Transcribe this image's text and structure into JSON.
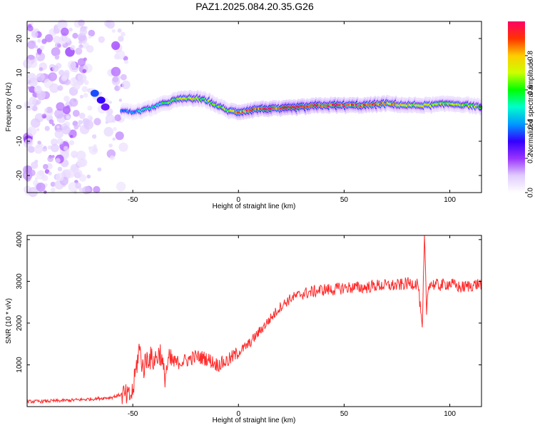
{
  "title": "PAZ1.2025.084.20.35.G26",
  "chart_data": [
    {
      "type": "heatmap",
      "title": "PAZ1.2025.084.20.35.G26",
      "xlabel": "Height of straight line (km)",
      "ylabel": "Frequency (Hz)",
      "xlim": [
        -100,
        115
      ],
      "ylim": [
        -25,
        25
      ],
      "x_ticks": [
        -50,
        0,
        50,
        100
      ],
      "y_ticks": [
        -20,
        -10,
        0,
        10,
        20
      ],
      "colorbar": {
        "label": "Normalized spectral amplitude",
        "range": [
          0.0,
          1.0
        ],
        "ticks": [
          0.0,
          0.2,
          0.4,
          0.6,
          0.8
        ],
        "tick_labels": [
          "0.0",
          "0.2",
          "0.4",
          "0.6",
          "0.8"
        ],
        "colormap": [
          "#ffffff",
          "#e0ccff",
          "#9933ff",
          "#3300ff",
          "#0099ff",
          "#00ffcc",
          "#00ff00",
          "#ccff00",
          "#ffcc00",
          "#ff3300",
          "#ff0066"
        ]
      },
      "ridge": {
        "height_km": [
          -55,
          -50,
          -45,
          -40,
          -35,
          -30,
          -25,
          -20,
          -15,
          -10,
          -5,
          0,
          5,
          10,
          20,
          30,
          40,
          50,
          60,
          70,
          80,
          90,
          100,
          110,
          115
        ],
        "frequency_hz": [
          -1,
          -1.5,
          -1,
          0,
          1,
          2,
          2.5,
          2.5,
          2,
          0.5,
          -1,
          -1.5,
          -1,
          -0.5,
          -0.5,
          0,
          0.5,
          0.5,
          0.5,
          1,
          0.5,
          0.5,
          1,
          0.5,
          0
        ],
        "peak_amplitude": [
          0.35,
          0.4,
          0.5,
          0.5,
          0.55,
          0.6,
          0.7,
          0.75,
          0.6,
          0.6,
          0.65,
          0.8,
          0.85,
          0.9,
          0.95,
          1.0,
          0.95,
          0.9,
          0.9,
          0.8,
          0.75,
          0.7,
          0.7,
          0.65,
          0.6
        ]
      },
      "noise_region_km": [
        -100,
        -50
      ]
    },
    {
      "type": "line",
      "xlabel": "Height of straight line (km)",
      "ylabel": "SNR (10 * v/v)",
      "xlim": [
        -100,
        115
      ],
      "ylim": [
        0,
        4100
      ],
      "x_ticks": [
        -50,
        0,
        50,
        100
      ],
      "y_ticks": [
        1000,
        2000,
        3000,
        4000
      ],
      "color": "#ff2a2a",
      "series": [
        {
          "x": [
            -100,
            -90,
            -80,
            -70,
            -60,
            -55,
            -52,
            -50,
            -47,
            -45,
            -43,
            -40,
            -37,
            -35,
            -33,
            -30,
            -25,
            -20,
            -15,
            -10,
            -5,
            0,
            5,
            10,
            15,
            20,
            25,
            30,
            35,
            40,
            45,
            50,
            55,
            60,
            65,
            70,
            75,
            80,
            85,
            87,
            88,
            89,
            90,
            95,
            100,
            105,
            110,
            115
          ],
          "y": [
            120,
            130,
            150,
            180,
            220,
            300,
            200,
            350,
            1400,
            900,
            1200,
            1100,
            1300,
            700,
            1100,
            1050,
            1100,
            1200,
            1150,
            1000,
            1100,
            1300,
            1500,
            1800,
            2100,
            2400,
            2600,
            2700,
            2750,
            2800,
            2800,
            2850,
            2850,
            2850,
            2900,
            2900,
            2900,
            2950,
            2950,
            1800,
            4100,
            2300,
            2950,
            2900,
            2950,
            2850,
            2900,
            2950
          ]
        }
      ]
    }
  ]
}
